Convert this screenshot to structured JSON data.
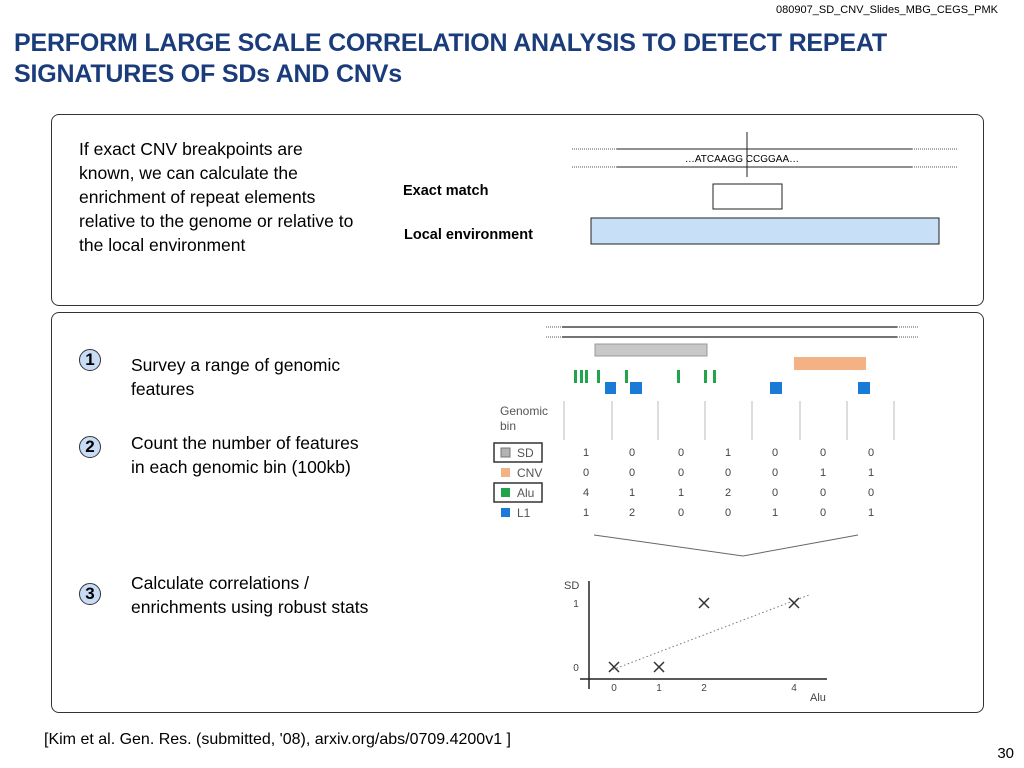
{
  "header": {
    "doc_id": "080907_SD_CNV_Slides_MBG_CEGS_PMK",
    "title": "PERFORM LARGE SCALE CORRELATION ANALYSIS TO DETECT REPEAT SIGNATURES OF SDs AND CNVs"
  },
  "top_panel": {
    "intro_text": "If exact CNV breakpoints are known, we can calculate the enrichment of repeat elements relative to the genome or relative to the local environment",
    "sequence": "…ATCAAGG CCGGAA…",
    "exact_match_label": "Exact match",
    "local_env_label": "Local environment"
  },
  "steps": [
    {
      "num": "1",
      "text": "Survey a range of genomic features"
    },
    {
      "num": "2",
      "text": "Count the number of features in each genomic bin (100kb)"
    },
    {
      "num": "3",
      "text": "Calculate correlations / enrichments using robust stats"
    }
  ],
  "genomic_bin_label": "Genomic bin",
  "features_table": {
    "rows": [
      {
        "label": "SD",
        "color": "#b3b3b3",
        "boxed": true,
        "counts": [
          "1",
          "0",
          "0",
          "1",
          "0",
          "0",
          "0"
        ]
      },
      {
        "label": "CNV",
        "color": "#f4b183",
        "boxed": false,
        "counts": [
          "0",
          "0",
          "0",
          "0",
          "0",
          "1",
          "1"
        ]
      },
      {
        "label": "Alu",
        "color": "#22a54a",
        "boxed": true,
        "counts": [
          "4",
          "1",
          "1",
          "2",
          "0",
          "0",
          "0"
        ]
      },
      {
        "label": "L1",
        "color": "#1a7bd6",
        "boxed": false,
        "counts": [
          "1",
          "2",
          "0",
          "0",
          "1",
          "0",
          "1"
        ]
      }
    ]
  },
  "chart_data": {
    "type": "scatter",
    "xlabel": "Alu",
    "ylabel": "SD",
    "x_ticks": [
      "0",
      "1",
      "2",
      "4"
    ],
    "y_ticks": [
      "0",
      "1"
    ],
    "points": [
      {
        "x": 0,
        "y": 0
      },
      {
        "x": 1,
        "y": 0
      },
      {
        "x": 2,
        "y": 1
      },
      {
        "x": 4,
        "y": 1
      }
    ],
    "trendline": "dotted"
  },
  "footer": {
    "citation": "[Kim et al. Gen. Res. (submitted, '08), arxiv.org/abs/0709.4200v1 ]",
    "page_number": "30"
  }
}
